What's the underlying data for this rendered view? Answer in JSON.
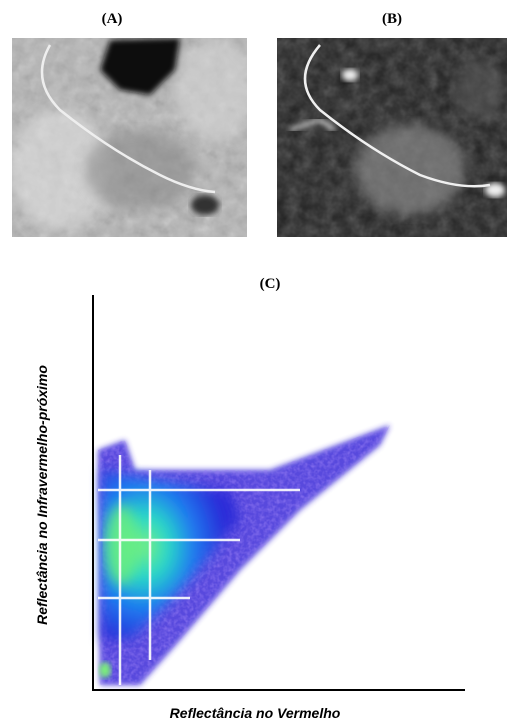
{
  "panels": [
    {
      "label": "(A)"
    },
    {
      "label": "(B)"
    }
  ],
  "plot": {
    "label": "(C)",
    "x_axis_label": "Reflectância no Vermelho",
    "y_axis_label": "Reflectância no Infravermelho-próximo"
  }
}
